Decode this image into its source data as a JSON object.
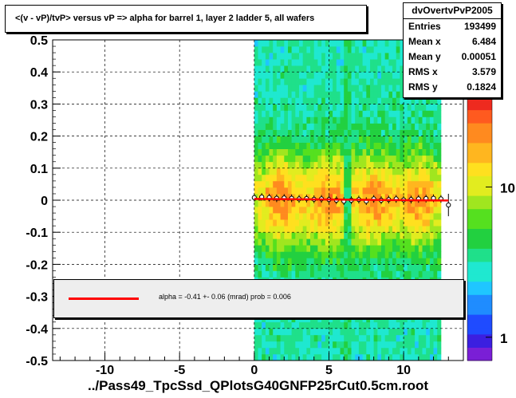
{
  "title": "<(v - vP)/tvP> versus   vP => alpha for barrel 1, layer 2 ladder 5, all wafers",
  "stats": {
    "name": "dvOvertvPvP2005",
    "rows": [
      {
        "label": "Entries",
        "value": "193499"
      },
      {
        "label": "Mean x",
        "value": "6.484"
      },
      {
        "label": "Mean y",
        "value": "0.00051"
      },
      {
        "label": "RMS x",
        "value": "3.579"
      },
      {
        "label": "RMS y",
        "value": "0.1824"
      }
    ]
  },
  "fit": {
    "text": "alpha =   -0.41 +-  0.06 (mrad) prob = 0.006",
    "line_color": "#ff0000"
  },
  "footer": "../Pass49_TpcSsd_QPlotsG40GNFP25rCut0.5cm.root",
  "chart_data": {
    "type": "heatmap",
    "xlim": [
      -13.5,
      14.0
    ],
    "ylim": [
      -0.5,
      0.5
    ],
    "xticks": [
      -10,
      -5,
      0,
      5,
      10
    ],
    "yticks": [
      -0.5,
      -0.4,
      -0.3,
      -0.2,
      -0.1,
      0,
      0.1,
      0.2,
      0.3,
      0.4,
      0.5
    ],
    "ytick_labels": [
      "-0.5",
      "-0.4",
      "-0.3",
      "-0.2",
      "-0.1",
      "0",
      "0.1",
      "0.2",
      "0.3",
      "0.4",
      "0.5"
    ],
    "grid": true,
    "occupied_x_range": [
      0,
      12.5
    ],
    "colorbar": {
      "scale": "log",
      "tick_labels": [
        "1",
        "10"
      ],
      "tick_values": [
        1,
        10
      ],
      "range": [
        0.7,
        40
      ]
    },
    "profile_points": {
      "x": [
        0.0,
        0.5,
        1.0,
        1.5,
        2.0,
        2.5,
        3.0,
        3.5,
        4.0,
        4.5,
        5.0,
        5.5,
        6.0,
        6.5,
        7.0,
        7.5,
        8.0,
        8.5,
        9.0,
        9.5,
        10.0,
        10.5,
        11.0,
        11.5,
        12.0,
        12.5,
        13.0
      ],
      "y": [
        0.008,
        0.01,
        0.008,
        0.006,
        0.007,
        0.006,
        0.004,
        0.005,
        0.003,
        0.004,
        0.002,
        0.0,
        -0.003,
        0.0,
        0.002,
        -0.003,
        0.004,
        0.0,
        0.002,
        0.004,
        0.001,
        0.002,
        0.004,
        0.005,
        0.006,
        0.004,
        -0.015
      ]
    },
    "fit_line": {
      "x": [
        0.0,
        13.0
      ],
      "y": [
        0.004,
        -0.001
      ]
    }
  }
}
